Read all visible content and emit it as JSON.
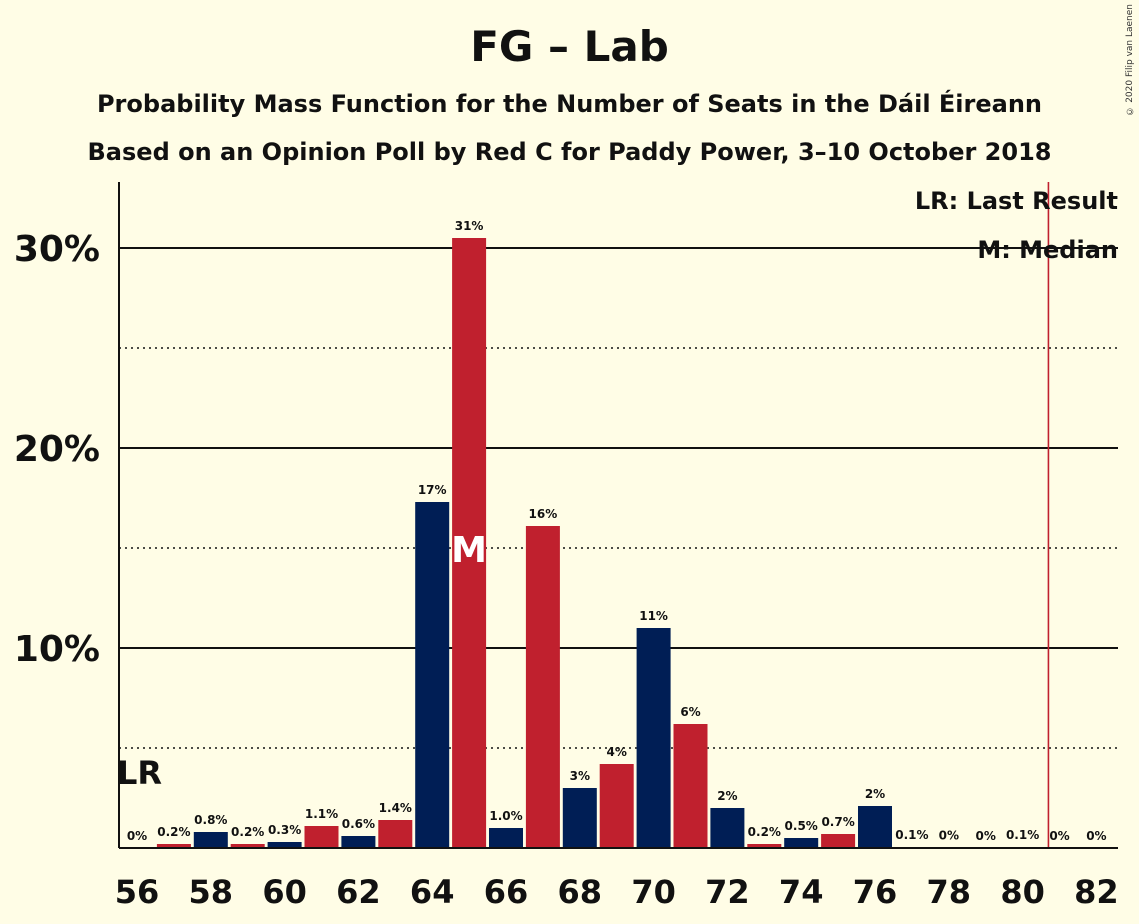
{
  "chart_data": {
    "type": "bar",
    "title": "FG – Lab",
    "subtitle_1": "Probability Mass Function for the Number of Seats in the Dáil Éireann",
    "subtitle_2": "Based on an Opinion Poll by Red C for Paddy Power, 3–10 October 2018",
    "copyright": "© 2020 Filip van Laenen",
    "x": [
      56,
      57,
      58,
      59,
      60,
      61,
      62,
      63,
      64,
      65,
      66,
      67,
      68,
      69,
      70,
      71,
      72,
      73,
      74,
      75,
      76,
      77,
      78,
      79,
      80,
      81,
      82
    ],
    "values": [
      0,
      0.2,
      0.8,
      0.2,
      0.3,
      1.1,
      0.6,
      1.4,
      17.3,
      30.5,
      1.0,
      16.1,
      3.0,
      4.2,
      11.0,
      6.2,
      2.0,
      0.2,
      0.5,
      0.7,
      2.1,
      0.05,
      0.02,
      0.01,
      0.05,
      0.01,
      0.01
    ],
    "labels": [
      "0%",
      "0.2%",
      "0.8%",
      "0.2%",
      "0.3%",
      "1.1%",
      "0.6%",
      "1.4%",
      "17%",
      "31%",
      "1.0%",
      "16%",
      "3%",
      "4%",
      "11%",
      "6%",
      "2%",
      "0.2%",
      "0.5%",
      "0.7%",
      "2%",
      "0.1%",
      "0%",
      "0%",
      "0.1%",
      "0%",
      "0%"
    ],
    "x_tick_labels": [
      "56",
      "58",
      "60",
      "62",
      "64",
      "66",
      "68",
      "70",
      "72",
      "74",
      "76",
      "78",
      "80",
      "82"
    ],
    "y_ticks": [
      10,
      20,
      30
    ],
    "y_tick_labels": [
      "10%",
      "20%",
      "30%"
    ],
    "ylim": [
      0,
      33
    ],
    "grid": true,
    "colors": {
      "even": "#001E55",
      "odd": "#C0202E",
      "background": "#FFFDE6",
      "last_result_line": "#C0202E"
    },
    "median": 65,
    "median_marker": "M",
    "last_result": 80.7,
    "last_result_marker": "LR",
    "legend": [
      "LR: Last Result",
      "M: Median"
    ],
    "legend_position": "top-right"
  }
}
